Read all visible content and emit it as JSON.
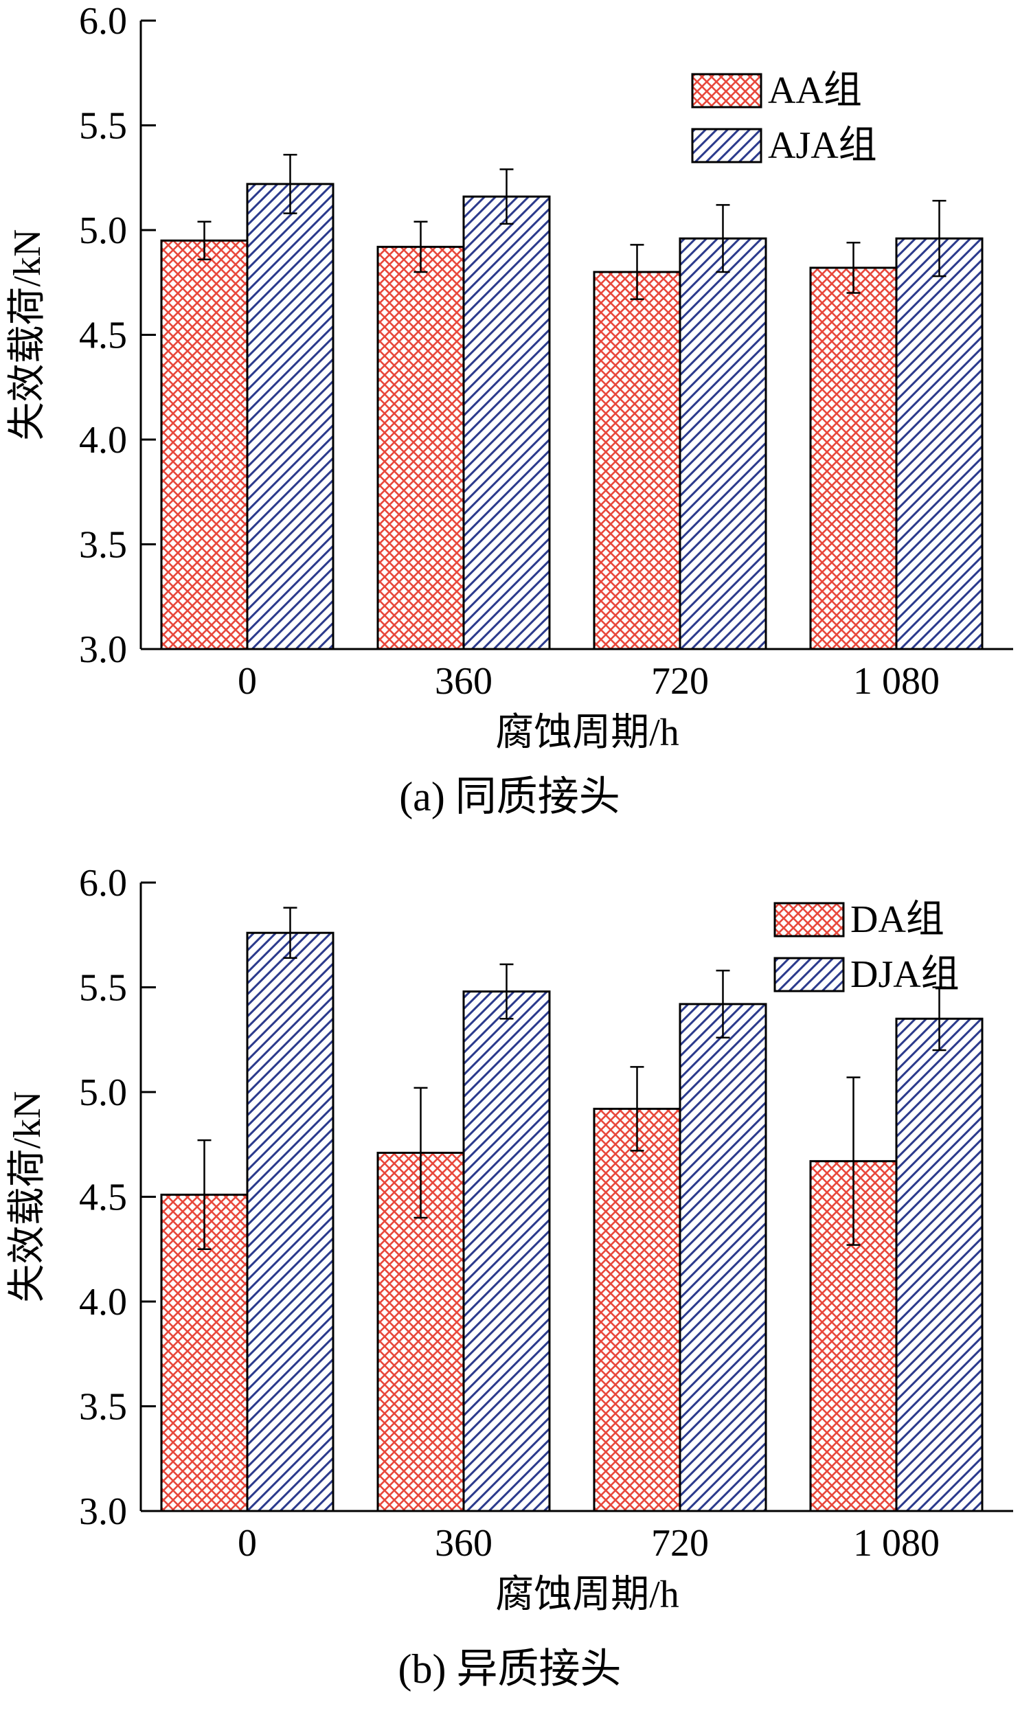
{
  "colors": {
    "red_pattern": "#e8483c",
    "blue_pattern": "#2b3a8c",
    "axis": "#000000"
  },
  "chart_data": [
    {
      "type": "bar",
      "caption": "(a)  同质接头",
      "categories": [
        "0",
        "360",
        "720",
        "1 080"
      ],
      "xlabel": "腐蚀周期/h",
      "ylabel": "失效载荷/kN",
      "ylim": [
        3.0,
        6.0
      ],
      "yticks": [
        "3.0",
        "3.5",
        "4.0",
        "4.5",
        "5.0",
        "5.5",
        "6.0"
      ],
      "legend_position": "top-right",
      "series": [
        {
          "name": "AA组",
          "pattern": "crosshatch-red",
          "values": [
            4.95,
            4.92,
            4.8,
            4.82
          ],
          "errors": [
            0.09,
            0.12,
            0.13,
            0.12
          ]
        },
        {
          "name": "AJA组",
          "pattern": "diagonal-blue",
          "values": [
            5.22,
            5.16,
            4.96,
            4.96
          ],
          "errors": [
            0.14,
            0.13,
            0.16,
            0.18
          ]
        }
      ]
    },
    {
      "type": "bar",
      "caption": "(b)  异质接头",
      "categories": [
        "0",
        "360",
        "720",
        "1 080"
      ],
      "xlabel": "腐蚀周期/h",
      "ylabel": "失效载荷/kN",
      "ylim": [
        3.0,
        6.0
      ],
      "yticks": [
        "3.0",
        "3.5",
        "4.0",
        "4.5",
        "5.0",
        "5.5",
        "6.0"
      ],
      "legend_position": "top-right",
      "series": [
        {
          "name": "DA组",
          "pattern": "crosshatch-red",
          "values": [
            4.51,
            4.71,
            4.92,
            4.67
          ],
          "errors": [
            0.26,
            0.31,
            0.2,
            0.4
          ]
        },
        {
          "name": "DJA组",
          "pattern": "diagonal-blue",
          "values": [
            5.76,
            5.48,
            5.42,
            5.35
          ],
          "errors": [
            0.12,
            0.13,
            0.16,
            0.15
          ]
        }
      ]
    }
  ]
}
